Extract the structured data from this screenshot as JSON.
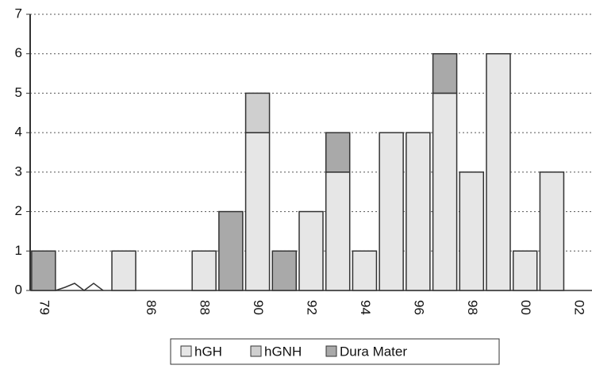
{
  "chart_data": {
    "type": "bar",
    "stacked": true,
    "categories": [
      "79",
      null,
      null,
      null,
      "86",
      null,
      "88",
      null,
      "90",
      null,
      "92",
      null,
      "94",
      null,
      "96",
      null,
      "98",
      null,
      "00",
      null,
      "02"
    ],
    "series": [
      {
        "name": "hGH",
        "color": "#e6e6e6",
        "values": [
          0,
          0,
          0,
          1,
          0,
          0,
          1,
          0,
          4,
          0,
          2,
          3,
          1,
          4,
          4,
          5,
          3,
          6,
          1,
          3,
          0
        ]
      },
      {
        "name": "hGNH",
        "color": "#cfcfcf",
        "values": [
          0,
          0,
          0,
          0,
          0,
          0,
          0,
          0,
          1,
          0,
          0,
          0,
          0,
          0,
          0,
          0,
          0,
          0,
          0,
          0,
          0
        ]
      },
      {
        "name": "Dura Mater",
        "color": "#a9a9a9",
        "values": [
          1,
          0,
          0,
          0,
          0,
          0,
          0,
          2,
          0,
          1,
          0,
          1,
          0,
          0,
          0,
          1,
          0,
          0,
          0,
          0,
          0
        ]
      }
    ],
    "ylim": [
      0,
      7
    ],
    "yticks": [
      0,
      1,
      2,
      3,
      4,
      5,
      6,
      7
    ],
    "grid": true
  }
}
